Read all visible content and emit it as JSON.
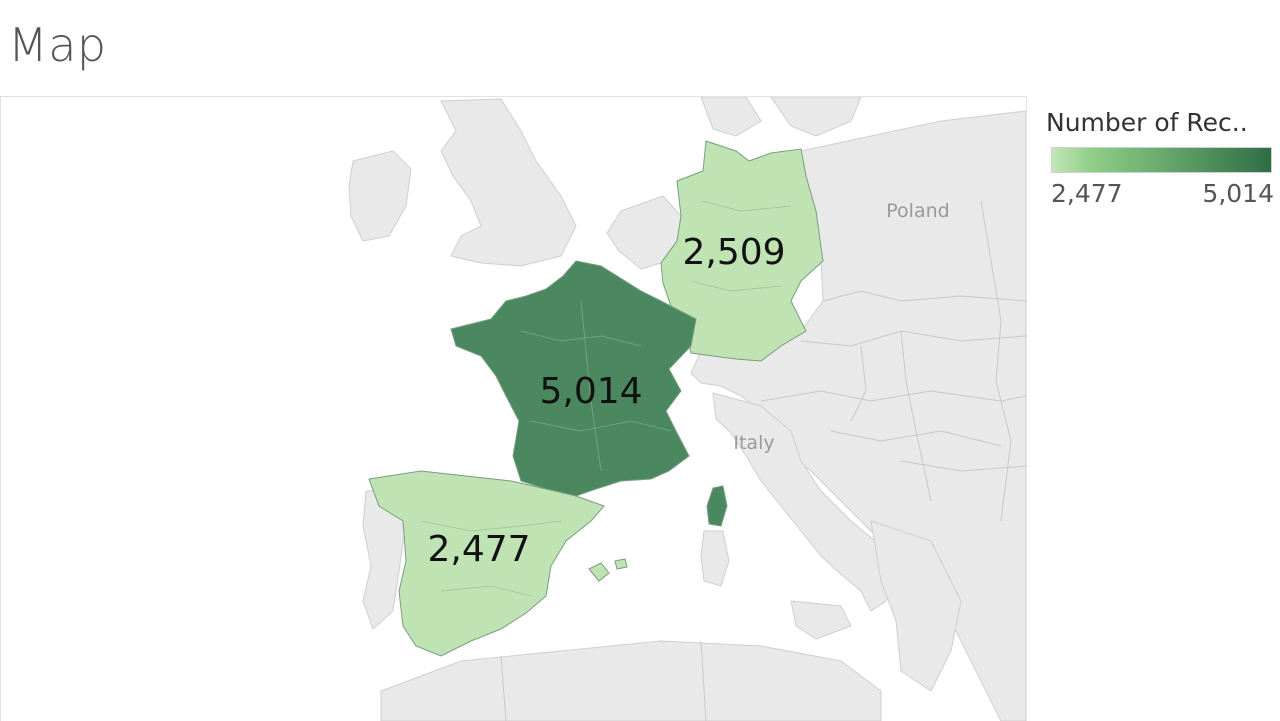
{
  "page": {
    "title": "Map"
  },
  "legend": {
    "title": "Number of Rec..",
    "min_label": "2,477",
    "max_label": "5,014",
    "min_color": "#c5e6b9",
    "max_color": "#2e6e44"
  },
  "map": {
    "basemap_labels": [
      "Poland",
      "Italy"
    ],
    "regions": [
      {
        "country": "France",
        "value": 5014,
        "label": "5,014",
        "color": "#4b8860"
      },
      {
        "country": "Germany",
        "value": 2509,
        "label": "2,509",
        "color": "#bfe3b3"
      },
      {
        "country": "Spain",
        "value": 2477,
        "label": "2,477",
        "color": "#bfe3b3"
      }
    ]
  },
  "colors": {
    "land": "#e9e9e9",
    "water": "#ffffff",
    "border": "#c8c8c8"
  }
}
